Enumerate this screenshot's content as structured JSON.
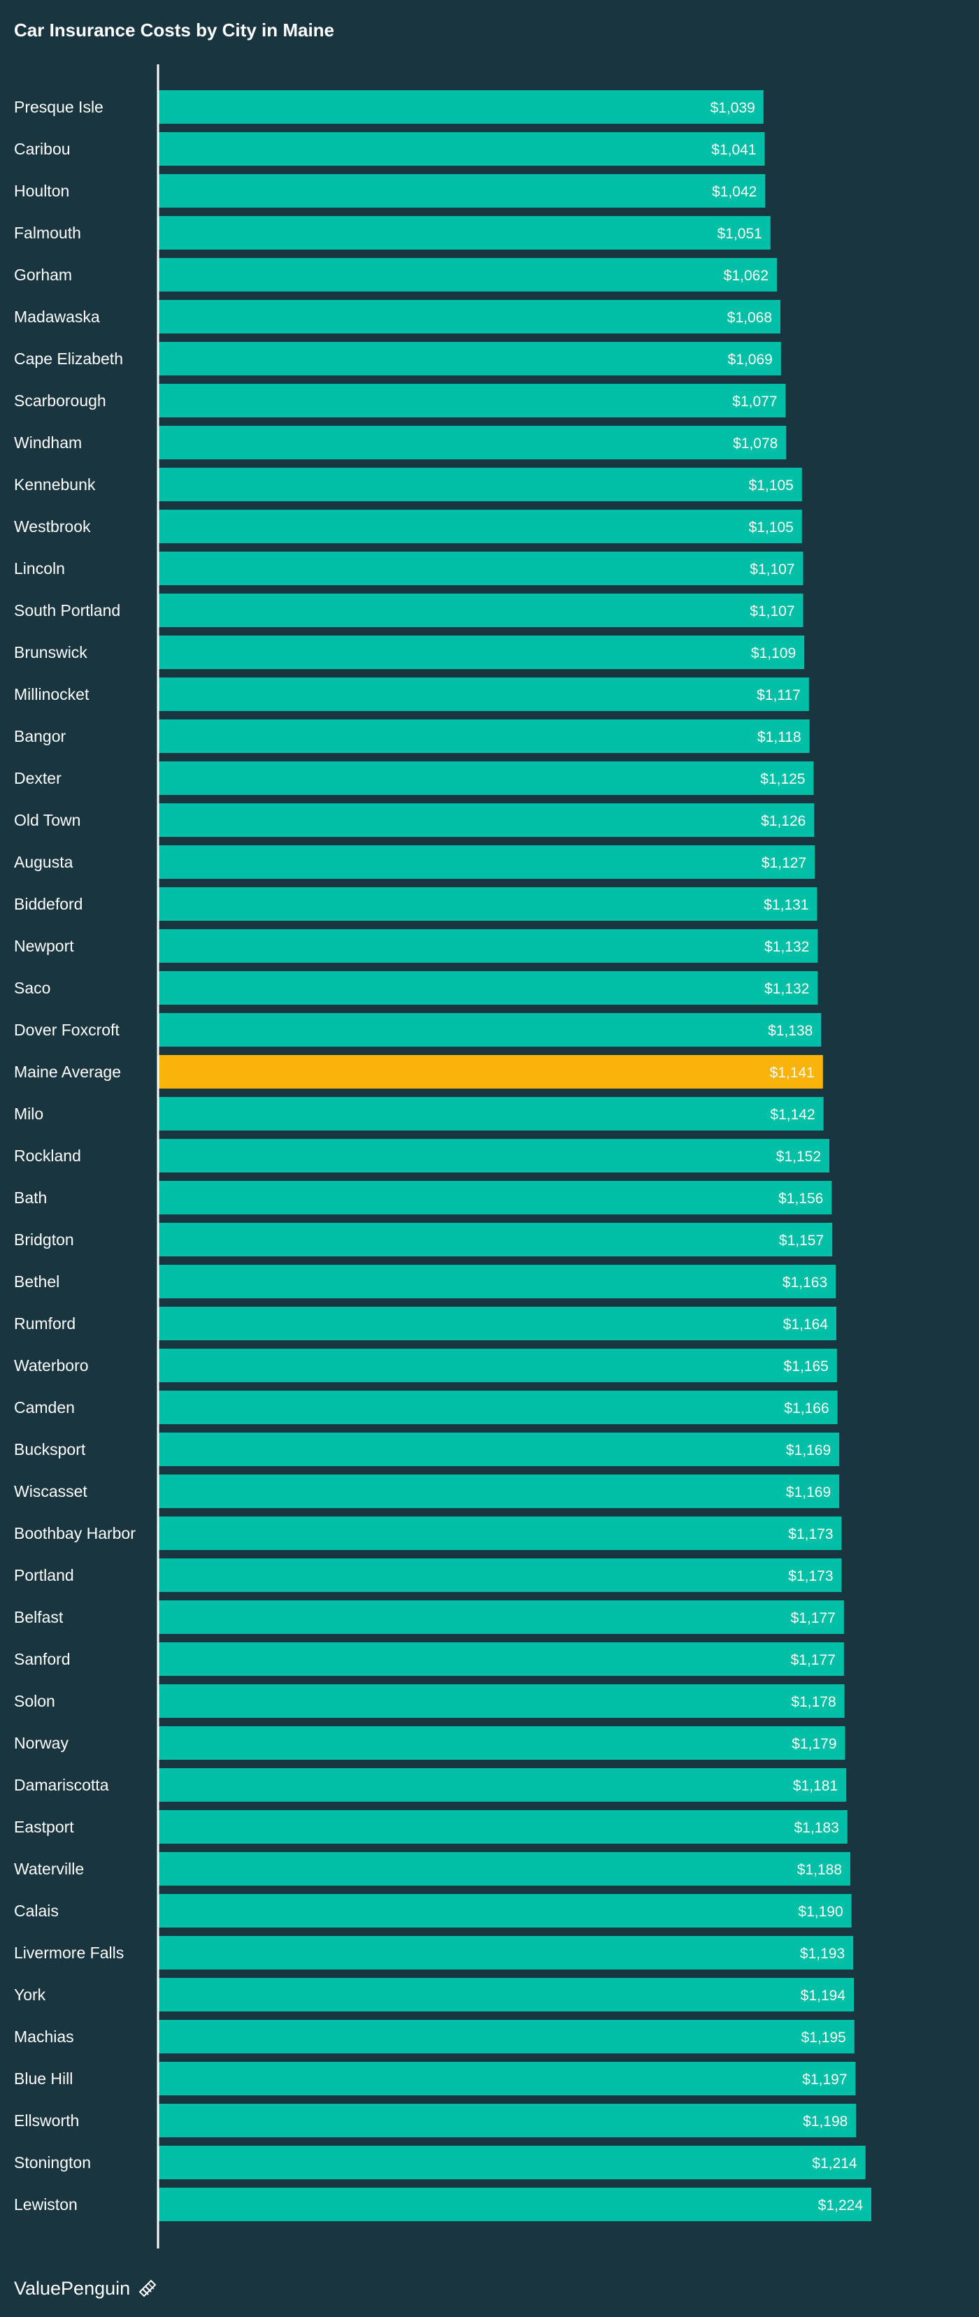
{
  "chart_data": {
    "type": "bar",
    "orientation": "horizontal",
    "title": "Car Insurance Costs by City in Maine",
    "categories": [
      "Presque Isle",
      "Caribou",
      "Houlton",
      "Falmouth",
      "Gorham",
      "Madawaska",
      "Cape Elizabeth",
      "Scarborough",
      "Windham",
      "Kennebunk",
      "Westbrook",
      "Lincoln",
      "South Portland",
      "Brunswick",
      "Millinocket",
      "Bangor",
      "Dexter",
      "Old Town",
      "Augusta",
      "Biddeford",
      "Newport",
      "Saco",
      "Dover Foxcroft",
      "Maine Average",
      "Milo",
      "Rockland",
      "Bath",
      "Bridgton",
      "Bethel",
      "Rumford",
      "Waterboro",
      "Camden",
      "Bucksport",
      "Wiscasset",
      "Boothbay Harbor",
      "Portland",
      "Belfast",
      "Sanford",
      "Solon",
      "Norway",
      "Damariscotta",
      "Eastport",
      "Waterville",
      "Calais",
      "Livermore Falls",
      "York",
      "Machias",
      "Blue Hill",
      "Ellsworth",
      "Stonington",
      "Lewiston"
    ],
    "values": [
      1039,
      1041,
      1042,
      1051,
      1062,
      1068,
      1069,
      1077,
      1078,
      1105,
      1105,
      1107,
      1107,
      1109,
      1117,
      1118,
      1125,
      1126,
      1127,
      1131,
      1132,
      1132,
      1138,
      1141,
      1142,
      1152,
      1156,
      1157,
      1163,
      1164,
      1165,
      1166,
      1169,
      1169,
      1173,
      1173,
      1177,
      1177,
      1178,
      1179,
      1181,
      1183,
      1188,
      1190,
      1193,
      1194,
      1195,
      1197,
      1198,
      1214,
      1224
    ],
    "labels": [
      "$1,039",
      "$1,041",
      "$1,042",
      "$1,051",
      "$1,062",
      "$1,068",
      "$1,069",
      "$1,077",
      "$1,078",
      "$1,105",
      "$1,105",
      "$1,107",
      "$1,107",
      "$1,109",
      "$1,117",
      "$1,118",
      "$1,125",
      "$1,126",
      "$1,127",
      "$1,131",
      "$1,132",
      "$1,132",
      "$1,138",
      "$1,141",
      "$1,142",
      "$1,152",
      "$1,156",
      "$1,157",
      "$1,163",
      "$1,164",
      "$1,165",
      "$1,166",
      "$1,169",
      "$1,169",
      "$1,173",
      "$1,173",
      "$1,177",
      "$1,177",
      "$1,178",
      "$1,179",
      "$1,181",
      "$1,183",
      "$1,188",
      "$1,190",
      "$1,193",
      "$1,194",
      "$1,195",
      "$1,197",
      "$1,198",
      "$1,214",
      "$1,224"
    ],
    "highlight_category": "Maine Average",
    "xlim": [
      0,
      1320
    ],
    "grid": false,
    "legend": "none"
  },
  "colors": {
    "background": "#183540",
    "bar": "#00bfa7",
    "highlight": "#f9b30a",
    "text": "#ffffff",
    "axis": "#ffffff"
  },
  "footer": {
    "brand": "ValuePenguin",
    "icon": "valuepenguin-logo-icon"
  }
}
